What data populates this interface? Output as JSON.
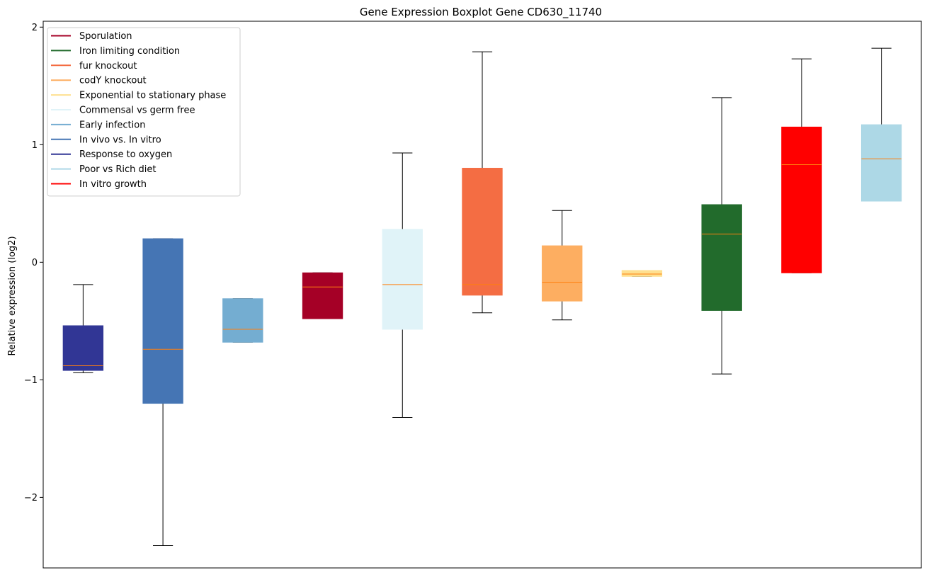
{
  "chart_data": {
    "type": "boxplot",
    "title": "Gene Expression Boxplot Gene CD630_11740",
    "xlabel": "",
    "ylabel": "Relative expression (log2)",
    "ylim": [
      -2.6,
      2.05
    ],
    "yticks": [
      -2,
      -1,
      0,
      1,
      2
    ],
    "ytick_labels": [
      "−2",
      "−1",
      "0",
      "1",
      "2"
    ],
    "legend_position": "upper-left",
    "median_color": "#ff7f0e",
    "legend": [
      {
        "label": "Sporulation",
        "color": "#a50026"
      },
      {
        "label": "Iron limiting condition",
        "color": "#226b2c"
      },
      {
        "label": "fur knockout",
        "color": "#f46d43"
      },
      {
        "label": "codY knockout",
        "color": "#fdae61"
      },
      {
        "label": "Exponential to stationary phase",
        "color": "#fee090"
      },
      {
        "label": "Commensal vs germ free",
        "color": "#e0f3f8"
      },
      {
        "label": "Early infection",
        "color": "#74add1"
      },
      {
        "label": "In vivo vs. In vitro",
        "color": "#4575b4"
      },
      {
        "label": "Response to oxygen",
        "color": "#313695"
      },
      {
        "label": "Poor vs Rich diet",
        "color": "#add8e6"
      },
      {
        "label": "In vitro growth",
        "color": "#ff0000"
      }
    ],
    "boxes": [
      {
        "group": "Response to oxygen",
        "color": "#313695",
        "whislo": -0.94,
        "q1": -0.92,
        "med": -0.88,
        "q3": -0.54,
        "whishi": -0.19
      },
      {
        "group": "In vivo vs. In vitro",
        "color": "#4575b4",
        "whislo": -2.41,
        "q1": -1.2,
        "med": -0.74,
        "q3": 0.2,
        "whishi": 0.2
      },
      {
        "group": "Early infection",
        "color": "#74add1",
        "whislo": -0.68,
        "q1": -0.68,
        "med": -0.57,
        "q3": -0.31,
        "whishi": -0.31
      },
      {
        "group": "Sporulation",
        "color": "#a50026",
        "whislo": -0.48,
        "q1": -0.48,
        "med": -0.21,
        "q3": -0.09,
        "whishi": -0.09
      },
      {
        "group": "Commensal vs germ free",
        "color": "#e0f3f8",
        "whislo": -1.32,
        "q1": -0.57,
        "med": -0.19,
        "q3": 0.28,
        "whishi": 0.93
      },
      {
        "group": "fur knockout",
        "color": "#f46d43",
        "whislo": -0.43,
        "q1": -0.28,
        "med": -0.19,
        "q3": 0.8,
        "whishi": 1.79
      },
      {
        "group": "codY knockout",
        "color": "#fdae61",
        "whislo": -0.49,
        "q1": -0.33,
        "med": -0.17,
        "q3": 0.14,
        "whishi": 0.44
      },
      {
        "group": "Exponential to stationary phase",
        "color": "#fee090",
        "whislo": -0.12,
        "q1": -0.12,
        "med": -0.1,
        "q3": -0.07,
        "whishi": -0.07
      },
      {
        "group": "Iron limiting condition",
        "color": "#226b2c",
        "whislo": -0.95,
        "q1": -0.41,
        "med": 0.24,
        "q3": 0.49,
        "whishi": 1.4
      },
      {
        "group": "In vitro growth",
        "color": "#ff0000",
        "whislo": -0.09,
        "q1": -0.09,
        "med": 0.83,
        "q3": 1.15,
        "whishi": 1.73
      },
      {
        "group": "Poor vs Rich diet",
        "color": "#add8e6",
        "whislo": 0.52,
        "q1": 0.52,
        "med": 0.88,
        "q3": 1.17,
        "whishi": 1.82
      }
    ]
  }
}
